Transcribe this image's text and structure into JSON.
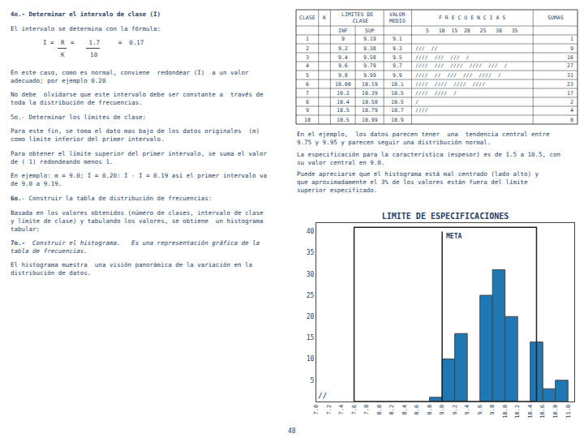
{
  "chart_data": {
    "type": "bar",
    "title": "LIMITE DE ESPECIFICACIONES",
    "x": [
      8.8,
      9.0,
      9.2,
      9.6,
      9.8,
      10.0,
      10.4,
      10.6,
      10.8
    ],
    "widths": [
      0.2,
      0.2,
      0.2,
      0.2,
      0.2,
      0.2,
      0.2,
      0.2,
      0.2
    ],
    "values": [
      1,
      10,
      16,
      25,
      31,
      20,
      14,
      3,
      5
    ],
    "xlim": [
      7.0,
      11.1
    ],
    "ylim": [
      0,
      42
    ],
    "xticks": [
      {
        "value": 7.0,
        "label": "7.0"
      },
      7.2,
      7.4,
      7.6,
      7.8,
      {
        "value": 8.0,
        "label": "8.0"
      },
      8.2,
      8.4,
      8.6,
      8.8,
      {
        "value": 9.0,
        "label": "9.0"
      },
      9.2,
      9.4,
      9.6,
      9.8,
      {
        "value": 10.0,
        "label": "10.0"
      },
      10.2,
      10.4,
      10.6,
      10.8,
      {
        "value": 11.0,
        "label": "11.0"
      }
    ],
    "yticks": [
      5,
      10,
      15,
      20,
      25,
      30,
      35,
      40
    ],
    "grid": false,
    "spec_rect": {
      "x": 7.6,
      "width": 2.9,
      "height": 41
    },
    "meta_line": {
      "x": 9.0,
      "y": [
        0,
        40
      ],
      "label": "META"
    },
    "break_mark": {
      "text": "//",
      "x": 7.1
    },
    "text": {
      "steps": [
        {
          "runs": [
            {
              "text": "4o.- Determinar el intervalo de clase (I)",
              "bold": true
            }
          ]
        },
        {
          "text": "El intervalo se determina con la fórmula:"
        },
        {
          "formula": {
            "lhs": "I =",
            "numerator": "R",
            "rest": "=    1.7     =  0.17",
            "denominator": "K       10"
          }
        },
        {
          "text": "En este caso, como es normal, conviene  redondear (I)  a un valor\nadecuado; por ejemplo 0.20"
        },
        {
          "text": "No debe  olvidarse que este intervalo debe ser constante a  través de\ntoda la distribución de frecuencias."
        },
        {
          "text": "5o.- Determinar los límites de clase:"
        },
        {
          "text": "Para este fin, se toma el dato mas bajo de los datos originales  (m)\ncomo límite inferior del primer intervalo."
        },
        {
          "text": "Para obtener el límite superior del primer intervalo, se suma el valor\nde ( 1) redondeando menos 1."
        },
        {
          "text": "En ejemplo: m = 9.0; I = 0.20: I - I = 0.19 así el primer intervalo va\nde 9.0 a 9.19."
        },
        {
          "runs": [
            {
              "text": "6o.",
              "bold": true
            },
            {
              "text": "- Construir la tabla de distribución de frecuencias:"
            }
          ]
        },
        {
          "text": "Basada en los valores obtenidos (número de clases, intervalo de clase\ny límite de clase) y tabulando los valores, se obtiene  un histograma\ntabular:"
        },
        {
          "runs": [
            {
              "text": "7o.-",
              "bold": true
            },
            {
              "text": "  Construir el histograma.   Es una representación gráfica de la\ntabla de frecuencias.",
              "italic": true
            }
          ]
        },
        {
          "text": "El histograma muestra  una visión panorámica de la variación en la\ndistribución de datos."
        }
      ],
      "remarks": [
        "En el ejemplo,  los datos parecen tener  una  tendencia central entre\n9.75 y 9.95 y parecen seguir una distribución normal.",
        "La especificación para la característica (espesor) es de 1.5 a 10.5, con\nsu valor central en 9.0.",
        "Puede apreciarse que el histograma está mal centrado (lado alto) y\nque aproximadamente el 3% de los valores están fuera del límite\nsuperior especificado."
      ],
      "page_number": "48"
    },
    "table": {
      "header": [
        "CLASE",
        "K",
        "LIMITES DE\n  CLASE",
        "VALOR\nMEDIO",
        "F R E C U E N C I A S",
        "SUMAS"
      ],
      "subheader": [
        "INF",
        "SUP",
        "5   10  15  20   25   30   35"
      ],
      "rows": [
        [
          "1",
          "9",
          "9.19",
          "9.1",
          null,
          "1"
        ],
        [
          "2",
          "9.2",
          "9.38",
          "9.3",
          "///  //",
          "9"
        ],
        [
          "3",
          "9.4",
          "9.58",
          "9.5",
          "////  ///  ///  /",
          "16"
        ],
        [
          "4",
          "9.6",
          "9.79",
          "9.7",
          "////  ///  ////  ////  ///  /",
          "27"
        ],
        [
          "5",
          "9.8",
          "9.99",
          "9.9",
          "////  //  ///  ///  ////  /",
          "31"
        ],
        [
          "6",
          "10.00",
          "10.19",
          "10.1",
          "////  ////  ////  ////",
          "23"
        ],
        [
          "7",
          "10.2",
          "10.39",
          "10.5",
          "////  ////  /",
          "17"
        ],
        [
          "8",
          "10.4",
          "10.58",
          "10.5",
          "/",
          "2"
        ],
        [
          "9",
          "10.5",
          "10.79",
          "10.7",
          "////",
          "4"
        ],
        [
          "10",
          "10.5",
          "10.99",
          "10.9",
          null,
          "0"
        ]
      ]
    }
  }
}
